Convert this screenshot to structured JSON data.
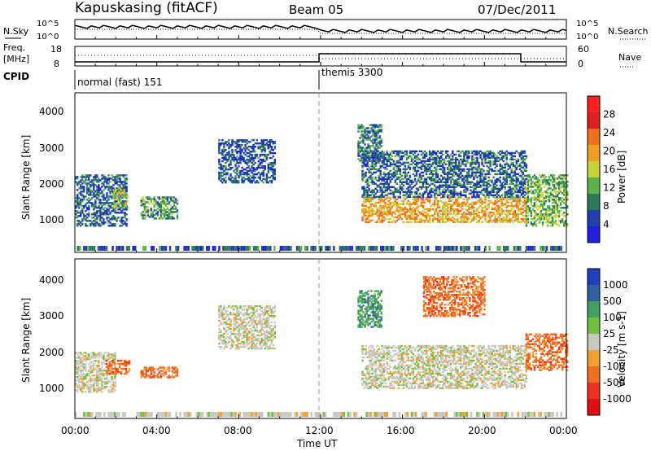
{
  "header": {
    "station": "Kapuskasing (fitACF)",
    "beam": "Beam 05",
    "date": "07/Dec/2011"
  },
  "top_panels": {
    "nsky_label": "N.Sky",
    "nsearch_label": "N.Search",
    "noise_ticks_top": "10^5",
    "noise_ticks_bottom": "10^0",
    "freq_label_1": "Freq.",
    "freq_label_2": "[MHz]",
    "nave_label": "Nave",
    "freq_ticks": [
      "18",
      "8"
    ],
    "nave_ticks": [
      "60",
      "0"
    ],
    "cpid_label": "CPID",
    "cpid_modes": [
      {
        "name": "normal (fast) 151",
        "start_hour": 0.0
      },
      {
        "name": "themis 3300",
        "start_hour": 12.0
      }
    ]
  },
  "power_panel": {
    "ylabel": "Slant Range [km]",
    "yticks": [
      "1000",
      "2000",
      "3000",
      "4000"
    ],
    "colorbar_label": "Power [dB]",
    "colorbar_ticks": [
      "4",
      "8",
      "12",
      "16",
      "20",
      "24",
      "28"
    ],
    "colors": [
      "#1f1fe0",
      "#1f3fb0",
      "#2a7a5a",
      "#5cb34a",
      "#c8d23a",
      "#f0a020",
      "#f07020",
      "#e02020",
      "#ff2020"
    ]
  },
  "velocity_panel": {
    "ylabel": "Slant Range [km]",
    "yticks": [
      "1000",
      "2000",
      "3000",
      "4000"
    ],
    "colorbar_label": "Velocity [m s-1]",
    "colorbar_ticks": [
      "1000",
      "500",
      "100",
      "25",
      "-25",
      "-100",
      "-500",
      "-1000"
    ],
    "colors": [
      "#2040c0",
      "#3060a0",
      "#40a060",
      "#70c040",
      "#c8c8c0",
      "#f0a030",
      "#f07020",
      "#f03020",
      "#e01010"
    ]
  },
  "xaxis": {
    "label": "Time UT",
    "ticks": [
      "00:00",
      "04:00",
      "08:00",
      "12:00",
      "16:00",
      "20:00",
      "00:00"
    ]
  },
  "chart_data": [
    {
      "type": "heatmap",
      "title": "Power",
      "xlabel": "Time UT",
      "ylabel": "Slant Range [km]",
      "xlim": [
        0,
        24
      ],
      "ylim": [
        180,
        4600
      ],
      "zlabel": "Power [dB]",
      "zlim": [
        0,
        32
      ],
      "regions": [
        {
          "t": [
            0.0,
            2.5
          ],
          "r": [
            900,
            2300
          ],
          "level": 6
        },
        {
          "t": [
            1.8,
            2.6
          ],
          "r": [
            1400,
            1900
          ],
          "level": 14
        },
        {
          "t": [
            3.2,
            5.0
          ],
          "r": [
            1100,
            1700
          ],
          "level": 10
        },
        {
          "t": [
            7.0,
            9.8
          ],
          "r": [
            2100,
            3300
          ],
          "level": 5
        },
        {
          "t": [
            13.8,
            15.0
          ],
          "r": [
            2700,
            3700
          ],
          "level": 8
        },
        {
          "t": [
            14.0,
            22.0
          ],
          "r": [
            1000,
            1700
          ],
          "level": 20
        },
        {
          "t": [
            14.0,
            22.0
          ],
          "r": [
            1700,
            3000
          ],
          "level": 6
        },
        {
          "t": [
            22.0,
            24.0
          ],
          "r": [
            900,
            2300
          ],
          "level": 12
        }
      ]
    },
    {
      "type": "heatmap",
      "title": "Velocity",
      "xlabel": "Time UT",
      "ylabel": "Slant Range [km]",
      "xlim": [
        0,
        24
      ],
      "ylim": [
        180,
        4600
      ],
      "zlabel": "Velocity [m s-1]",
      "zlim": [
        -1000,
        1000
      ],
      "regions": [
        {
          "t": [
            0.0,
            2.0
          ],
          "r": [
            900,
            2000
          ],
          "level": 0
        },
        {
          "t": [
            1.5,
            2.7
          ],
          "r": [
            1400,
            1800
          ],
          "level": -300
        },
        {
          "t": [
            3.2,
            5.0
          ],
          "r": [
            1300,
            1600
          ],
          "level": -250
        },
        {
          "t": [
            7.0,
            9.8
          ],
          "r": [
            2100,
            3300
          ],
          "level": 0
        },
        {
          "t": [
            13.8,
            15.0
          ],
          "r": [
            2700,
            3700
          ],
          "level": 150
        },
        {
          "t": [
            14.0,
            22.0
          ],
          "r": [
            1000,
            2200
          ],
          "level": 0
        },
        {
          "t": [
            17.0,
            20.0
          ],
          "r": [
            3000,
            4100
          ],
          "level": -300
        },
        {
          "t": [
            22.0,
            24.0
          ],
          "r": [
            1500,
            2500
          ],
          "level": -300
        }
      ]
    }
  ]
}
